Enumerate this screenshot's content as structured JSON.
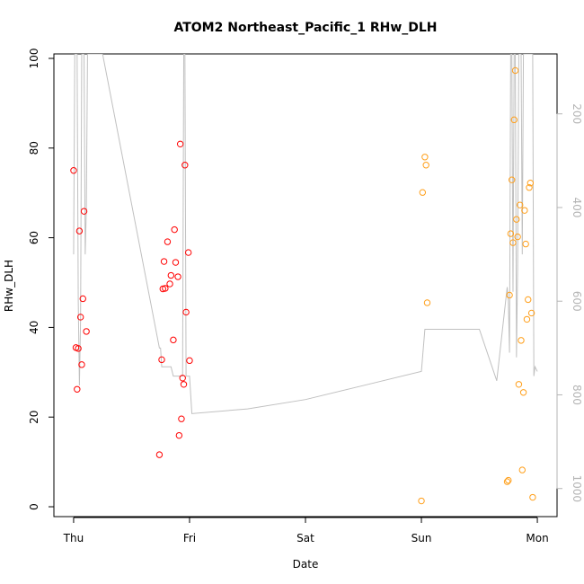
{
  "chart_data": {
    "type": "scatter",
    "title": "ATOM2 Northeast_Pacific_1 RHw_DLH",
    "xlabel": "Date",
    "ylabel": "RHw_DLH",
    "x_ticks": [
      "Thu",
      "Fri",
      "Sat",
      "Sun",
      "Mon"
    ],
    "xlim": [
      -0.17,
      4.17
    ],
    "ylim": [
      -2.2,
      101
    ],
    "y_ticks": [
      0,
      20,
      40,
      60,
      80,
      100
    ],
    "y2_ticks": [
      200,
      400,
      600,
      800,
      1000
    ],
    "y2lim": [
      72,
      1060
    ],
    "grid": false,
    "legend": "none",
    "colors": {
      "red": "#ff0000",
      "orange": "#ff9f1a",
      "line": "#c0c0c0",
      "axis": "#000000",
      "axis2": "#b5b5b5"
    },
    "series": [
      {
        "color": "red",
        "x": [
          0.0,
          0.02,
          0.03,
          0.04,
          0.05,
          0.06,
          0.07,
          0.08,
          0.09,
          0.11,
          0.74,
          0.76,
          0.77,
          0.78,
          0.79,
          0.81,
          0.83,
          0.84,
          0.86,
          0.87,
          0.88,
          0.9,
          0.91,
          0.92,
          0.93,
          0.94,
          0.95,
          0.96,
          0.97,
          0.99,
          1.0
        ],
        "y": [
          75,
          35.5,
          26.2,
          35.3,
          61.5,
          42.3,
          31.7,
          46.4,
          65.9,
          39.1,
          11.6,
          32.8,
          48.6,
          54.7,
          48.7,
          59.1,
          49.7,
          51.6,
          37.2,
          61.8,
          54.5,
          51.3,
          15.9,
          80.9,
          19.6,
          28.7,
          27.3,
          76.2,
          43.4,
          56.7,
          32.6
        ]
      },
      {
        "color": "orange",
        "x": [
          3.0,
          3.01,
          3.03,
          3.04,
          3.05,
          3.74,
          3.75,
          3.76,
          3.77,
          3.78,
          3.79,
          3.8,
          3.81,
          3.82,
          3.83,
          3.84,
          3.85,
          3.86,
          3.87,
          3.88,
          3.89,
          3.9,
          3.91,
          3.92,
          3.93,
          3.94,
          3.95,
          3.96
        ],
        "y": [
          1.3,
          70.1,
          78,
          76.2,
          45.5,
          5.6,
          5.9,
          47.2,
          60.9,
          72.9,
          58.9,
          86.3,
          97.3,
          64.1,
          60.2,
          27.3,
          67.3,
          37.1,
          8.2,
          25.5,
          66.1,
          58.6,
          41.8,
          46.2,
          71.2,
          72.2,
          43.2,
          2.1
        ]
      }
    ],
    "secondary_line": {
      "color": "line",
      "x": [
        0.0,
        0.01,
        0.02,
        0.03,
        0.04,
        0.05,
        0.06,
        0.07,
        0.08,
        0.09,
        0.1,
        0.11,
        0.12,
        0.13,
        0.15,
        0.18,
        0.25,
        0.74,
        0.75,
        0.76,
        0.77,
        0.8,
        0.82,
        0.84,
        0.86,
        0.88,
        0.9,
        0.92,
        0.93,
        0.94,
        0.95,
        0.96,
        0.97,
        0.98,
        1.0,
        1.02,
        1.5,
        2.0,
        2.5,
        3.0,
        3.01,
        3.02,
        3.03,
        3.04,
        3.05,
        3.06,
        3.5,
        3.65,
        3.74,
        3.75,
        3.76,
        3.77,
        3.78,
        3.79,
        3.8,
        3.81,
        3.82,
        3.83,
        3.84,
        3.85,
        3.86,
        3.87,
        3.88,
        3.89,
        3.9,
        3.91,
        3.92,
        3.93,
        3.94,
        3.95,
        3.96,
        3.97,
        3.98,
        4.0
      ],
      "y": [
        500,
        72,
        72,
        72,
        600,
        780,
        640,
        72,
        72,
        72,
        500,
        400,
        72,
        72,
        72,
        72,
        72,
        700,
        700,
        740,
        740,
        740,
        740,
        740,
        760,
        760,
        760,
        760,
        760,
        760,
        72,
        72,
        760,
        760,
        760,
        840,
        830,
        810,
        780,
        750,
        720,
        690,
        660,
        660,
        660,
        660,
        660,
        770,
        570,
        600,
        710,
        72,
        72,
        580,
        72,
        72,
        720,
        530,
        72,
        72,
        72,
        500,
        72,
        72,
        72,
        72,
        72,
        72,
        72,
        72,
        72,
        760,
        740,
        750
      ]
    }
  }
}
